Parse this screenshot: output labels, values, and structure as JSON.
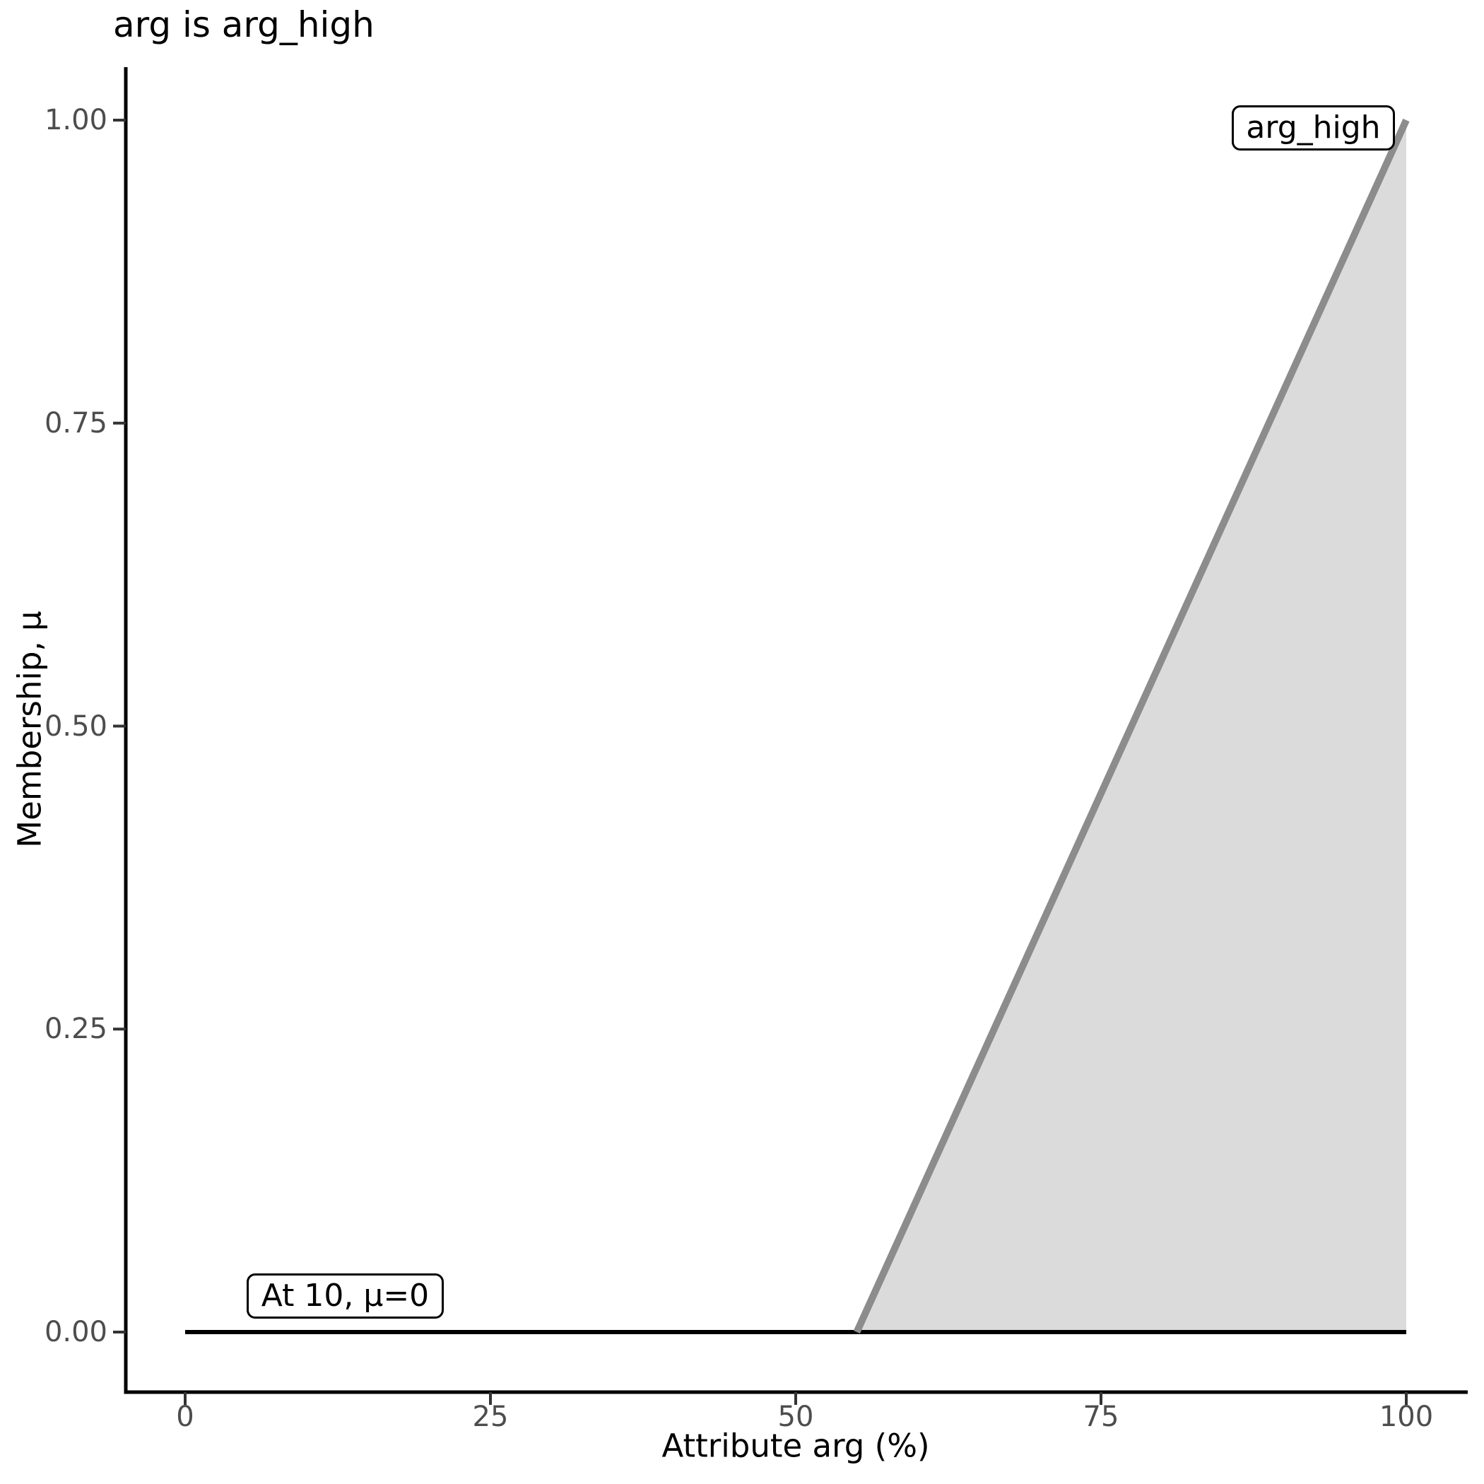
{
  "title": "arg is arg_high",
  "axes": {
    "x": {
      "label": "Attribute arg (%)",
      "tick_labels": [
        "0",
        "25",
        "50",
        "75",
        "100"
      ],
      "tick_values": [
        0,
        25,
        50,
        75,
        100
      ],
      "range": [
        0,
        100
      ]
    },
    "y": {
      "label": "Membership, μ",
      "tick_labels": [
        "0.00",
        "0.25",
        "0.50",
        "0.75",
        "1.00"
      ],
      "tick_values": [
        0,
        0.25,
        0.5,
        0.75,
        1
      ],
      "range": [
        0,
        1
      ]
    }
  },
  "chart_data": {
    "type": "area",
    "title": "arg is arg_high",
    "xlabel": "Attribute arg (%)",
    "ylabel": "Membership, μ",
    "xlim": [
      0,
      100
    ],
    "ylim": [
      0,
      1
    ],
    "grid": false,
    "legend": "none",
    "series": [
      {
        "name": "membership_baseline",
        "type": "line",
        "color": "#000000",
        "stroke_width": 6,
        "points": [
          [
            0,
            0
          ],
          [
            100,
            0
          ]
        ]
      },
      {
        "name": "arg_high_membership",
        "type": "area",
        "line_color": "#8C8C8C",
        "fill_color": "#DBDBDB",
        "stroke_width": 10,
        "baseline": 0,
        "points": [
          [
            55,
            0
          ],
          [
            100,
            1
          ]
        ]
      }
    ],
    "annotations": [
      {
        "text": "At 10, μ=0",
        "anchor_x": 10,
        "anchor_y": 0
      },
      {
        "text": "arg_high",
        "anchor_x": 100,
        "anchor_y": 1
      }
    ],
    "colors": {
      "membership_line": "#8C8C8C",
      "area_fill": "#DBDBDB",
      "baseline_line": "#000000",
      "axis_line": "#000000",
      "tick_mark": "#333333",
      "tick_text": "#4D4D4D",
      "title_text": "#000000"
    }
  }
}
